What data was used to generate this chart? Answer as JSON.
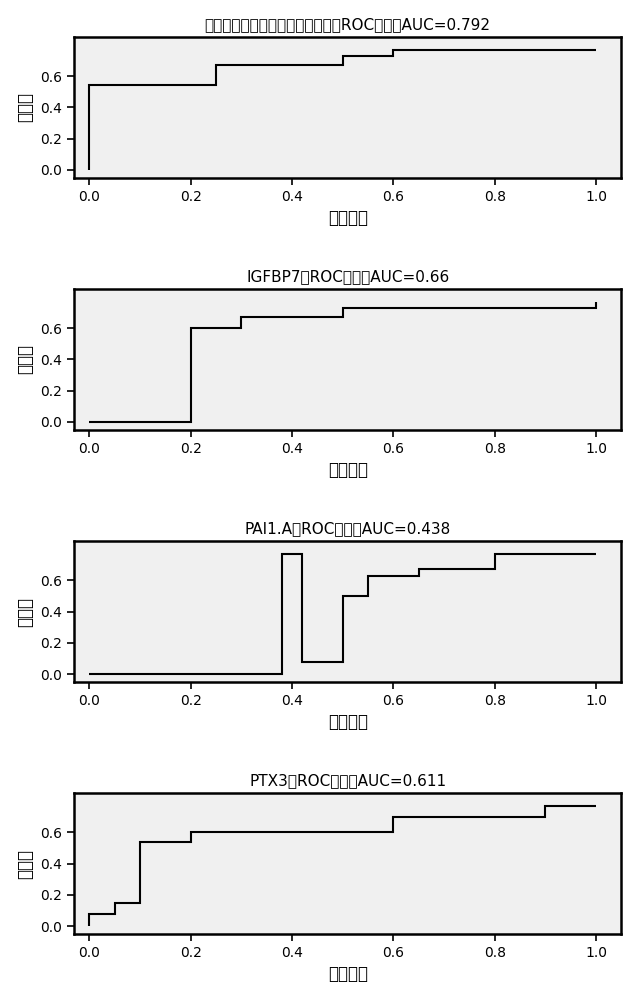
{
  "charts": [
    {
      "title": "细胞外基质金属蛋白酶诱导因子的ROC曲线；AUC=0.792",
      "fpr": [
        0.0,
        0.0,
        0.25,
        0.25,
        0.5,
        0.5,
        0.6,
        0.6,
        1.0
      ],
      "tpr": [
        0.0,
        0.54,
        0.54,
        0.67,
        0.67,
        0.73,
        0.73,
        0.77,
        0.77
      ]
    },
    {
      "title": "IGFBP7的ROC曲线；AUC=0.66",
      "fpr": [
        0.0,
        0.2,
        0.2,
        0.3,
        0.3,
        0.5,
        0.5,
        1.0,
        1.0
      ],
      "tpr": [
        0.0,
        0.0,
        0.6,
        0.6,
        0.67,
        0.67,
        0.73,
        0.73,
        0.77
      ]
    },
    {
      "title": "PAI1.A的ROC曲线；AUC=0.438",
      "fpr": [
        0.0,
        0.38,
        0.38,
        0.42,
        0.42,
        0.5,
        0.5,
        0.55,
        0.55,
        0.65,
        0.65,
        0.8,
        0.8,
        1.0
      ],
      "tpr": [
        0.0,
        0.0,
        0.77,
        0.77,
        0.08,
        0.08,
        0.5,
        0.5,
        0.625,
        0.625,
        0.67,
        0.67,
        0.77,
        0.77
      ]
    },
    {
      "title": "PTX3的ROC曲线；AUC=0.611",
      "fpr": [
        0.0,
        0.0,
        0.05,
        0.05,
        0.1,
        0.1,
        0.2,
        0.2,
        0.3,
        0.3,
        0.6,
        0.6,
        0.9,
        0.9,
        1.0
      ],
      "tpr": [
        0.0,
        0.08,
        0.08,
        0.15,
        0.15,
        0.54,
        0.54,
        0.6,
        0.6,
        0.7,
        0.7,
        0.77,
        0.77,
        0.77,
        0.77
      ]
    }
  ],
  "xlabel": "假阳性率",
  "ylabel": "灵敏度",
  "line_color": "#000000",
  "bg_color": "#f0f0f0",
  "fig_bg": "#ffffff",
  "xticks": [
    0.0,
    0.2,
    0.4,
    0.6,
    0.8,
    1.0
  ],
  "yticks": [
    0.0,
    0.2,
    0.4,
    0.6
  ],
  "xlim": [
    -0.03,
    1.05
  ],
  "ylim": [
    -0.05,
    0.85
  ]
}
